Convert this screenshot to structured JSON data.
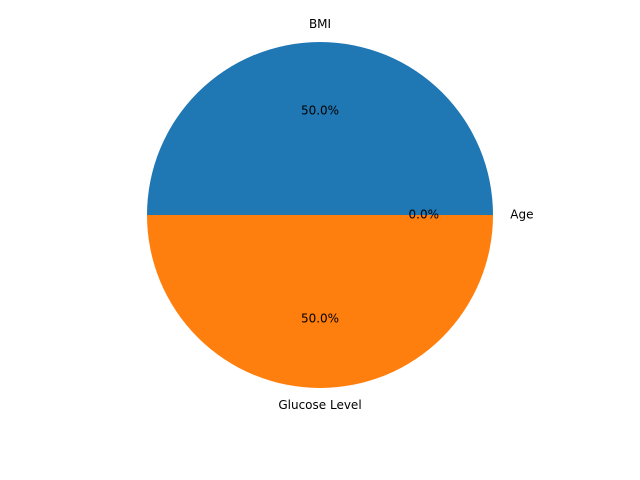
{
  "chart_data": {
    "type": "pie",
    "title": "",
    "categories": [
      "Age",
      "BMI",
      "Glucose Level"
    ],
    "values": [
      0,
      50,
      50
    ],
    "percent_labels": [
      "0.0%",
      "50.0%",
      "50.0%"
    ],
    "colors": [
      "#2ca02c",
      "#1f77b4",
      "#ff7f0e"
    ],
    "start_angle_deg": 0,
    "direction": "counterclockwise"
  }
}
